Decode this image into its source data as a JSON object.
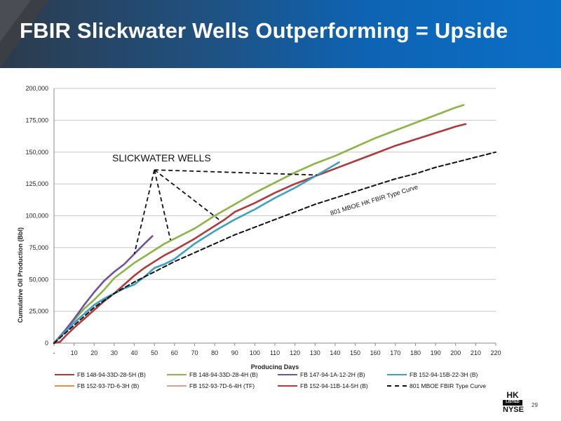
{
  "slide": {
    "title": "FBIR Slickwater Wells Outperforming = Upside",
    "page_number": "29",
    "logo": {
      "top": "HK",
      "middle": "LISTED",
      "bottom": "NYSE"
    }
  },
  "chart_data": {
    "type": "line",
    "xlabel": "Producing Days",
    "ylabel": "Cumulative Oil Production (Bbl)",
    "xlim": [
      0,
      220
    ],
    "ylim": [
      0,
      200000
    ],
    "x_ticks": [
      "-",
      "10",
      "20",
      "30",
      "40",
      "50",
      "60",
      "70",
      "80",
      "90",
      "100",
      "110",
      "120",
      "130",
      "140",
      "150",
      "160",
      "170",
      "180",
      "190",
      "200",
      "210",
      "220"
    ],
    "y_ticks": [
      "0",
      "25,000",
      "50,000",
      "75,000",
      "100,000",
      "125,000",
      "150,000",
      "175,000",
      "200,000"
    ],
    "grid": true,
    "legend_position": "bottom",
    "series": [
      {
        "name": "FB 148-94-33D-28-5H (B)",
        "color": "#b03a3a",
        "dashed": false,
        "x": [
          0,
          3,
          6,
          10,
          15,
          20,
          25,
          30,
          35,
          40,
          45,
          50,
          55,
          60,
          70,
          80,
          85,
          90,
          100,
          110,
          120,
          130,
          140,
          150,
          160,
          170,
          180,
          190,
          200,
          205
        ],
        "y": [
          0,
          1000,
          6000,
          12000,
          19000,
          26000,
          33000,
          39000,
          46000,
          53000,
          59000,
          64000,
          69000,
          73000,
          82000,
          92000,
          97000,
          103000,
          110000,
          118000,
          125000,
          131000,
          137000,
          143000,
          149000,
          155000,
          160000,
          165000,
          170000,
          172000
        ]
      },
      {
        "name": "FB 148-94-33D-28-4H (B)",
        "color": "#8db446",
        "dashed": false,
        "x": [
          0,
          5,
          10,
          15,
          20,
          25,
          30,
          35,
          40,
          45,
          50,
          55,
          60,
          70,
          80,
          90,
          100,
          110,
          120,
          130,
          140,
          150,
          160,
          170,
          180,
          190,
          200,
          204
        ],
        "y": [
          0,
          9000,
          18000,
          27000,
          34000,
          42000,
          51000,
          57000,
          63000,
          68000,
          73000,
          78000,
          82000,
          90000,
          100000,
          109000,
          118000,
          126000,
          134000,
          141000,
          147000,
          154000,
          161000,
          167000,
          173000,
          179000,
          185000,
          187000
        ]
      },
      {
        "name": "FB 147-94-1A-12-2H (B)",
        "color": "#7050a0",
        "dashed": false,
        "x": [
          0,
          5,
          10,
          15,
          20,
          25,
          30,
          35,
          40,
          45,
          49
        ],
        "y": [
          0,
          9000,
          19000,
          30000,
          40000,
          49000,
          56000,
          62000,
          70000,
          78000,
          84000
        ]
      },
      {
        "name": "FB 152-94-15B-22-3H (B)",
        "color": "#3aa1c4",
        "dashed": false,
        "x": [
          0,
          5,
          10,
          15,
          20,
          25,
          30,
          35,
          40,
          45,
          50,
          55,
          60,
          70,
          80,
          90,
          100,
          110,
          120,
          130,
          142
        ],
        "y": [
          0,
          8000,
          16000,
          23000,
          30000,
          35000,
          39000,
          43000,
          46000,
          52000,
          59000,
          62000,
          66000,
          78000,
          88000,
          97000,
          105000,
          114000,
          122000,
          131000,
          142000
        ]
      },
      {
        "name": "FB 152-93-7D-6-3H (B)",
        "color": "#e8913a",
        "dashed": false,
        "x": [
          0,
          0.5
        ],
        "y": [
          0,
          300
        ]
      },
      {
        "name": "FB 152-93-7D-6-4H (TF)",
        "color": "#e59a9a",
        "dashed": false,
        "x": [
          0,
          0.5
        ],
        "y": [
          0,
          300
        ]
      },
      {
        "name": "FB 152-94-11B-14-5H (B)",
        "color": "#e02a2a",
        "dashed": false,
        "x": [
          0,
          0.5
        ],
        "y": [
          0,
          300
        ]
      },
      {
        "name": "801 MBOE FBIR Type Curve",
        "color": "#111111",
        "dashed": true,
        "x": [
          0,
          10,
          20,
          30,
          40,
          50,
          60,
          70,
          80,
          90,
          100,
          110,
          120,
          130,
          140,
          150,
          160,
          170,
          180,
          190,
          200,
          210,
          220
        ],
        "y": [
          0,
          14000,
          28000,
          39000,
          48000,
          56000,
          64000,
          71000,
          78000,
          85000,
          91000,
          97000,
          103000,
          109000,
          114000,
          119000,
          124000,
          129000,
          133000,
          138000,
          142000,
          146000,
          150000
        ]
      }
    ],
    "annotations": [
      {
        "text": "SLICKWATER WELLS"
      },
      {
        "text": "801 MBOE HK FBIR Type Curve"
      }
    ],
    "callout_lines": {
      "origin": [
        50,
        136000
      ],
      "targets": [
        [
          40,
          70000
        ],
        [
          58,
          81000
        ],
        [
          83,
          96000
        ],
        [
          131,
          132000
        ]
      ]
    }
  }
}
